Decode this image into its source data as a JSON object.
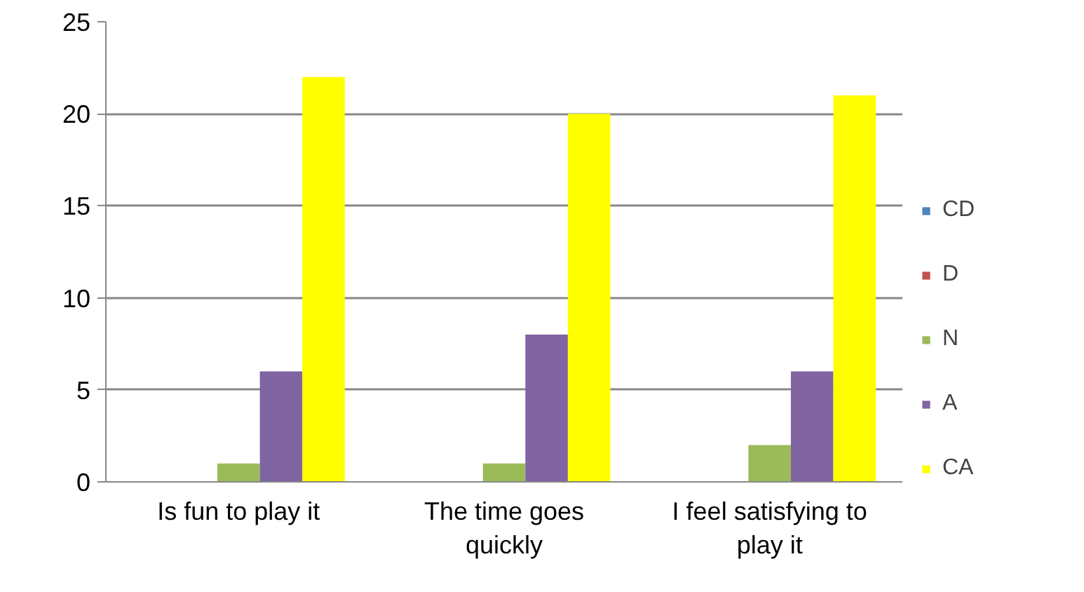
{
  "chart_data": {
    "type": "bar",
    "categories": [
      "Is fun to play it",
      "The time goes quickly",
      "I feel satisfying to play it"
    ],
    "series": [
      {
        "name": "CD",
        "color": "#4f81bd",
        "values": [
          0,
          0,
          0
        ]
      },
      {
        "name": "D",
        "color": "#c0504d",
        "values": [
          0,
          0,
          0
        ]
      },
      {
        "name": "N",
        "color": "#9bbb59",
        "values": [
          1,
          1,
          2
        ]
      },
      {
        "name": "A",
        "color": "#8064a2",
        "values": [
          6,
          8,
          6
        ]
      },
      {
        "name": "CA",
        "color": "#ffff00",
        "values": [
          22,
          20,
          21
        ]
      }
    ],
    "ylim": [
      0,
      25
    ],
    "yticks": [
      0,
      5,
      10,
      15,
      20,
      25
    ],
    "grid": "y",
    "legend": "right"
  }
}
